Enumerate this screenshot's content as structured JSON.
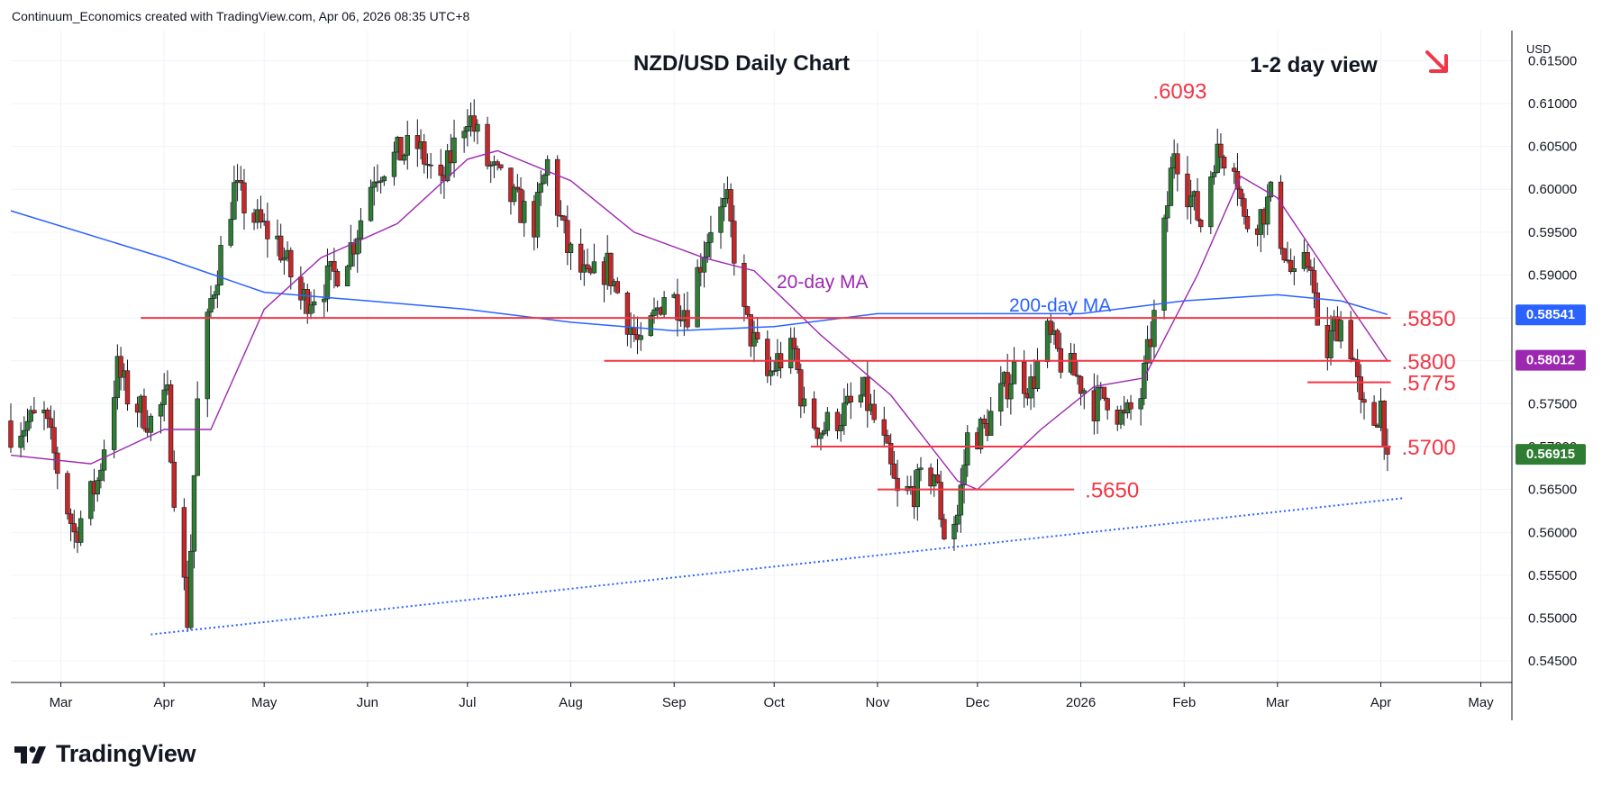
{
  "header": {
    "attribution": "Continuum_Economics created with TradingView.com, Apr 06, 2026 08:35 UTC+8"
  },
  "branding": {
    "logo_text": "TradingView",
    "logo_icon": "tradingview-logo-icon"
  },
  "colors": {
    "up": "#2e7d32",
    "down": "#c62828",
    "wick": "#131722",
    "ma20": "#9c27b0",
    "ma200": "#2962ff",
    "level": "#f23645",
    "trend": "#2962ff"
  },
  "chart_data": {
    "type": "candlestick",
    "title": "NZD/USD Daily Chart",
    "subtitle": "1-2 day view",
    "direction_icon": "arrow-down-right-icon",
    "currency": "USD",
    "ylim": [
      0.5425,
      0.6185
    ],
    "y_ticks": [
      "0.61500",
      "0.61000",
      "0.60500",
      "0.60000",
      "0.59500",
      "0.59000",
      "0.58500",
      "0.58000",
      "0.57500",
      "0.57000",
      "0.56500",
      "0.56000",
      "0.55500",
      "0.55000",
      "0.54500"
    ],
    "x_labels": [
      "Mar",
      "Apr",
      "May",
      "Jun",
      "Jul",
      "Aug",
      "Sep",
      "Oct",
      "Nov",
      "Dec",
      "2026",
      "Feb",
      "Mar",
      "Apr",
      "May"
    ],
    "x_dates": [
      "2025-03-01",
      "2025-04-01",
      "2025-05-01",
      "2025-06-01",
      "2025-07-01",
      "2025-08-01",
      "2025-09-01",
      "2025-10-01",
      "2025-11-01",
      "2025-12-01",
      "2026-01-01",
      "2026-02-01",
      "2026-03-01",
      "2026-04-01",
      "2026-05-01"
    ],
    "x_range": [
      "2025-02-14",
      "2026-05-06"
    ],
    "close_path": [
      [
        "2025-02-14",
        0.572
      ],
      [
        "2025-02-24",
        0.5735
      ],
      [
        "2025-03-05",
        0.5598
      ],
      [
        "2025-03-12",
        0.566
      ],
      [
        "2025-03-18",
        0.579
      ],
      [
        "2025-03-21",
        0.576
      ],
      [
        "2025-03-28",
        0.573
      ],
      [
        "2025-04-02",
        0.5755
      ],
      [
        "2025-04-04",
        0.565
      ],
      [
        "2025-04-08",
        0.55
      ],
      [
        "2025-04-11",
        0.575
      ],
      [
        "2025-04-15",
        0.587
      ],
      [
        "2025-04-22",
        0.6
      ],
      [
        "2025-04-29",
        0.596
      ],
      [
        "2025-05-05",
        0.594
      ],
      [
        "2025-05-12",
        0.587
      ],
      [
        "2025-05-16",
        0.588
      ],
      [
        "2025-05-22",
        0.59
      ],
      [
        "2025-05-28",
        0.594
      ],
      [
        "2025-06-03",
        0.602
      ],
      [
        "2025-06-10",
        0.604
      ],
      [
        "2025-06-16",
        0.605
      ],
      [
        "2025-06-23",
        0.6
      ],
      [
        "2025-06-27",
        0.605
      ],
      [
        "2025-07-01",
        0.609
      ],
      [
        "2025-07-07",
        0.603
      ],
      [
        "2025-07-14",
        0.599
      ],
      [
        "2025-07-21",
        0.596
      ],
      [
        "2025-07-25",
        0.603
      ],
      [
        "2025-07-31",
        0.593
      ],
      [
        "2025-08-06",
        0.589
      ],
      [
        "2025-08-12",
        0.591
      ],
      [
        "2025-08-18",
        0.585
      ],
      [
        "2025-08-22",
        0.581
      ],
      [
        "2025-08-29",
        0.588
      ],
      [
        "2025-09-05",
        0.586
      ],
      [
        "2025-09-12",
        0.596
      ],
      [
        "2025-09-17",
        0.598
      ],
      [
        "2025-09-22",
        0.585
      ],
      [
        "2025-09-29",
        0.578
      ],
      [
        "2025-10-02",
        0.58
      ],
      [
        "2025-10-07",
        0.581
      ],
      [
        "2025-10-10",
        0.574
      ],
      [
        "2025-10-15",
        0.572
      ],
      [
        "2025-10-22",
        0.574
      ],
      [
        "2025-10-28",
        0.576
      ],
      [
        "2025-11-03",
        0.57
      ],
      [
        "2025-11-07",
        0.564
      ],
      [
        "2025-11-12",
        0.565
      ],
      [
        "2025-11-18",
        0.567
      ],
      [
        "2025-11-21",
        0.56
      ],
      [
        "2025-11-25",
        0.562
      ],
      [
        "2025-11-28",
        0.571
      ],
      [
        "2025-12-03",
        0.572
      ],
      [
        "2025-12-08",
        0.576
      ],
      [
        "2025-12-12",
        0.579
      ],
      [
        "2025-12-17",
        0.577
      ],
      [
        "2025-12-22",
        0.583
      ],
      [
        "2025-12-26",
        0.58
      ],
      [
        "2025-12-31",
        0.578
      ],
      [
        "2026-01-05",
        0.575
      ],
      [
        "2026-01-09",
        0.576
      ],
      [
        "2026-01-14",
        0.573
      ],
      [
        "2026-01-19",
        0.576
      ],
      [
        "2026-01-23",
        0.585
      ],
      [
        "2026-01-26",
        0.595
      ],
      [
        "2026-01-29",
        0.605
      ],
      [
        "2026-02-02",
        0.6
      ],
      [
        "2026-02-06",
        0.596
      ],
      [
        "2026-02-10",
        0.604
      ],
      [
        "2026-02-16",
        0.604
      ],
      [
        "2026-02-19",
        0.596
      ],
      [
        "2026-02-24",
        0.597
      ],
      [
        "2026-02-27",
        0.599
      ],
      [
        "2026-03-03",
        0.593
      ],
      [
        "2026-03-06",
        0.589
      ],
      [
        "2026-03-11",
        0.592
      ],
      [
        "2026-03-14",
        0.578
      ],
      [
        "2026-03-18",
        0.584
      ],
      [
        "2026-03-21",
        0.585
      ],
      [
        "2026-03-24",
        0.58
      ],
      [
        "2026-03-26",
        0.574
      ],
      [
        "2026-03-30",
        0.573
      ],
      [
        "2026-04-01",
        0.575
      ],
      [
        "2026-04-03",
        0.5691
      ]
    ],
    "ma20_path": [
      [
        "2025-02-14",
        0.569
      ],
      [
        "2025-03-10",
        0.568
      ],
      [
        "2025-04-01",
        0.572
      ],
      [
        "2025-04-15",
        0.572
      ],
      [
        "2025-05-01",
        0.586
      ],
      [
        "2025-05-18",
        0.592
      ],
      [
        "2025-06-10",
        0.596
      ],
      [
        "2025-07-01",
        0.6035
      ],
      [
        "2025-07-10",
        0.6045
      ],
      [
        "2025-08-01",
        0.601
      ],
      [
        "2025-08-20",
        0.595
      ],
      [
        "2025-09-10",
        0.592
      ],
      [
        "2025-09-25",
        0.5905
      ],
      [
        "2025-10-15",
        0.583
      ],
      [
        "2025-11-05",
        0.576
      ],
      [
        "2025-11-25",
        0.566
      ],
      [
        "2025-12-01",
        0.565
      ],
      [
        "2025-12-20",
        0.572
      ],
      [
        "2026-01-05",
        0.577
      ],
      [
        "2026-01-20",
        0.578
      ],
      [
        "2026-02-05",
        0.59
      ],
      [
        "2026-02-18",
        0.6015
      ],
      [
        "2026-03-01",
        0.599
      ],
      [
        "2026-03-20",
        0.588
      ],
      [
        "2026-04-03",
        0.58
      ]
    ],
    "ma200_path": [
      [
        "2025-02-14",
        0.5975
      ],
      [
        "2025-04-01",
        0.592
      ],
      [
        "2025-05-01",
        0.588
      ],
      [
        "2025-06-01",
        0.587
      ],
      [
        "2025-07-01",
        0.586
      ],
      [
        "2025-08-01",
        0.5845
      ],
      [
        "2025-09-01",
        0.5835
      ],
      [
        "2025-10-01",
        0.584
      ],
      [
        "2025-11-01",
        0.5855
      ],
      [
        "2025-12-01",
        0.5855
      ],
      [
        "2026-01-01",
        0.5855
      ],
      [
        "2026-02-01",
        0.587
      ],
      [
        "2026-03-01",
        0.5877
      ],
      [
        "2026-03-20",
        0.587
      ],
      [
        "2026-04-03",
        0.5854
      ]
    ],
    "ma_labels": {
      "ma20": "20-day MA",
      "ma200": "200-day MA"
    },
    "levels": [
      {
        "value": 0.585,
        "label": ".5850",
        "from": "2025-03-25",
        "to": "2026-04-04"
      },
      {
        "value": 0.58,
        "label": ".5800",
        "from": "2025-08-11",
        "to": "2026-04-04"
      },
      {
        "value": 0.5775,
        "label": ".5775",
        "from": "2026-03-10",
        "to": "2026-04-04"
      },
      {
        "value": 0.57,
        "label": ".5700",
        "from": "2025-10-12",
        "to": "2026-04-04"
      },
      {
        "value": 0.565,
        "label": ".5650",
        "from": "2025-11-01",
        "to": "2025-12-30"
      }
    ],
    "peak_annotation": {
      "label": ".6093",
      "date": "2026-01-28",
      "value": 0.6093
    },
    "trendline": {
      "from": [
        "2025-03-28",
        0.5481
      ],
      "to": [
        "2026-04-08",
        0.564
      ],
      "style": "dotted"
    },
    "price_badges": [
      {
        "label": "0.58541",
        "value": 0.58541,
        "color": "#2962ff"
      },
      {
        "label": "0.58012",
        "value": 0.58012,
        "color": "#9c27b0"
      },
      {
        "label": "0.56915",
        "value": 0.56915,
        "color": "#2e7d32"
      }
    ]
  }
}
